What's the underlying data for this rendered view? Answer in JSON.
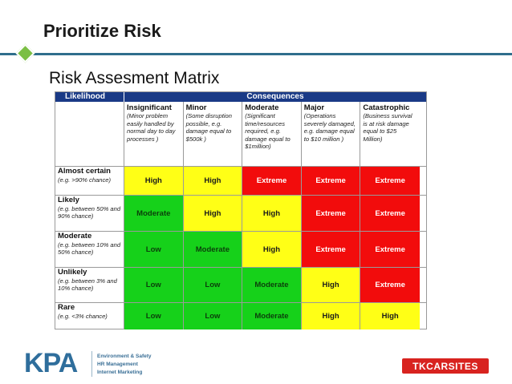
{
  "slide": {
    "title": "Prioritize Risk",
    "subtitle": "Risk Assesment Matrix"
  },
  "matrix": {
    "likelihood_header": "Likelihood",
    "consequences_header": "Consequences",
    "consequences": [
      {
        "name": "Insignificant",
        "desc": "(Minor problem easily handled by normal day to day processes )"
      },
      {
        "name": "Minor",
        "desc": "(Some disruption possible, e.g. damage equal to $500k )"
      },
      {
        "name": "Moderate",
        "desc": "(Significant time/resources required, e.g. damage equal to $1million)"
      },
      {
        "name": "Major",
        "desc": "(Operations severely damaged, e.g. damage equal to $10 million )"
      },
      {
        "name": "Catastrophic",
        "desc": "(Business survival is at risk damage equal to $25 Million)"
      }
    ],
    "rows": [
      {
        "name": "Almost certain",
        "desc": "(e.g. >90% chance)",
        "cells": [
          "High",
          "High",
          "Extreme",
          "Extreme",
          "Extreme"
        ]
      },
      {
        "name": "Likely",
        "desc": "(e.g. between 50% and 90% chance)",
        "cells": [
          "Moderate",
          "High",
          "High",
          "Extreme",
          "Extreme"
        ]
      },
      {
        "name": "Moderate",
        "desc": "(e.g. between 10% and 50% chance)",
        "cells": [
          "Low",
          "Moderate",
          "High",
          "Extreme",
          "Extreme"
        ]
      },
      {
        "name": "Unlikely",
        "desc": "(e.g. between 3% and 10% chance)",
        "cells": [
          "Low",
          "Low",
          "Moderate",
          "High",
          "Extreme"
        ]
      },
      {
        "name": "Rare",
        "desc": "(e.g. <3% chance)",
        "cells": [
          "Low",
          "Low",
          "Moderate",
          "High",
          "High"
        ]
      }
    ],
    "colors": {
      "low": "#16d11a",
      "high": "#ffff16",
      "extreme": "#f20c0c",
      "header": "#1a3a86"
    }
  },
  "footer": {
    "kpa_brand": "KPA",
    "kpa_tagline": [
      "Environment & Safety",
      "HR Management",
      "Internet Marketing"
    ],
    "tk_brand": "TKCARSITES"
  }
}
